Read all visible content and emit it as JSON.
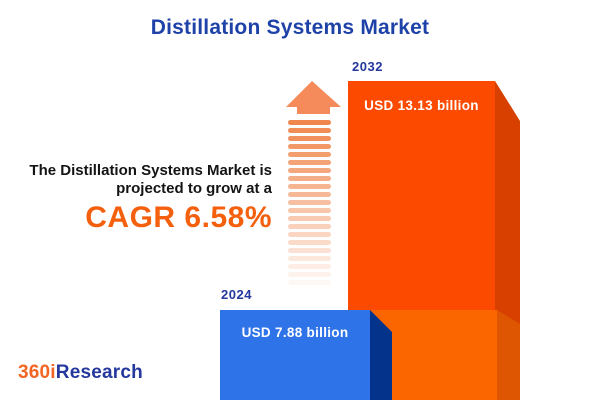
{
  "header": {
    "title": "Distillation Systems Market"
  },
  "annotation": {
    "line1": "The Distillation Systems Market is",
    "line2": "projected to grow at a",
    "cagr": "CAGR 6.58%"
  },
  "bars": [
    {
      "year": "2024",
      "value_label": "USD 7.88 billion",
      "value": 7.88
    },
    {
      "year": "2032",
      "value_label": "USD 13.13 billion",
      "value": 13.13
    }
  ],
  "logo": {
    "prefix": "360i",
    "suffix": "Research"
  },
  "icons": {
    "growth_arrow": "striped upward arrow fading toward bottom"
  },
  "colors": {
    "title_blue": "#1F42A8",
    "year_blue": "#24389E",
    "text_dark": "#141414",
    "cagr_orange": "#F4600D",
    "bar2032_front": "#FC4B00",
    "bar2032_side": "#D84000",
    "bar2032_overlap_front": "#FC6600",
    "bar2032_overlap_side": "#DE5602",
    "bar2024_front": "#2F73E8",
    "bar2024_side": "#04338C",
    "arrow_head": "#F58A5B",
    "arrow_stripe": "#F0874E",
    "logo_orange": "#F26522",
    "logo_blue": "#24389E",
    "value_text": "#FFFFFF"
  },
  "chart_data": {
    "type": "bar",
    "title": "Distillation Systems Market",
    "categories": [
      "2024",
      "2032"
    ],
    "values": [
      7.88,
      13.13
    ],
    "unit": "USD billion",
    "data_labels": [
      "USD 7.88 billion",
      "USD 13.13 billion"
    ],
    "cagr_percent": 6.58,
    "annotation": "The Distillation Systems Market is projected to grow at a CAGR 6.58%",
    "legend": false,
    "grid": false,
    "style": "3d-beveled bars, 2024 blue in front, 2032 orange behind with lighter overlap segment"
  }
}
